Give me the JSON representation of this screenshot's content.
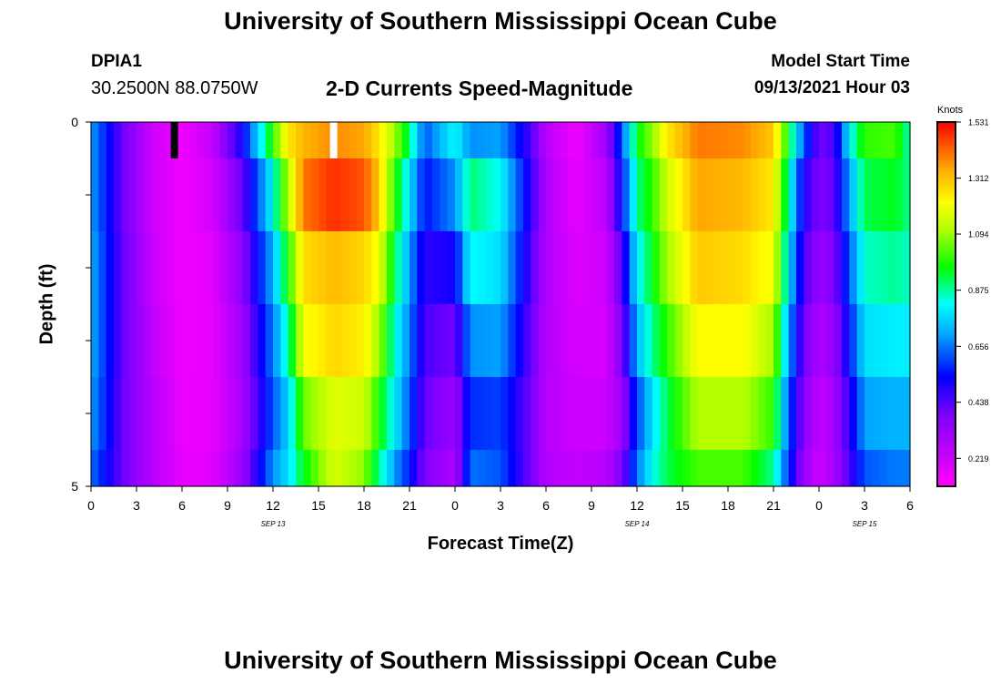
{
  "page_title": "University of Southern Mississippi Ocean Cube",
  "footer_title": "University of Southern Mississippi Ocean Cube",
  "station": {
    "id": "DPIA1",
    "coords": "30.2500N  88.0750W"
  },
  "model_start": {
    "label": "Model Start Time",
    "value": "09/13/2021 Hour 03"
  },
  "chart_data": {
    "type": "heatmap",
    "title": "2-D Currents Speed-Magnitude",
    "xlabel": "Forecast Time(Z)",
    "ylabel": "Depth (ft)",
    "x_tick_labels": [
      "0",
      "3",
      "6",
      "9",
      "12",
      "15",
      "18",
      "21",
      "0",
      "3",
      "6",
      "9",
      "12",
      "15",
      "18",
      "21",
      "0",
      "3",
      "6"
    ],
    "x_range_hours": [
      0,
      54
    ],
    "date_labels": [
      {
        "text": "SEP 13",
        "hour": 12
      },
      {
        "text": "SEP 14",
        "hour": 36
      },
      {
        "text": "SEP 15",
        "hour": 51
      }
    ],
    "y_tick_labels": [
      "0",
      "5"
    ],
    "y_range": [
      0,
      5
    ],
    "depth_rows": [
      0,
      0.5,
      1.5,
      2.5,
      3.5,
      4.5
    ],
    "colorbar": {
      "unit_label": "Knots",
      "min": 0.11,
      "max": 1.531,
      "tick_labels": [
        "1.531",
        "1.312",
        "1.094",
        "0.875",
        "0.656",
        "0.438",
        "0.219"
      ]
    },
    "keyframes": [
      {
        "hour": 0,
        "values": [
          0.7,
          0.7,
          0.72,
          0.72,
          0.7,
          0.65
        ]
      },
      {
        "hour": 2,
        "values": [
          0.42,
          0.42,
          0.43,
          0.43,
          0.42,
          0.42
        ]
      },
      {
        "hour": 4,
        "values": [
          0.22,
          0.22,
          0.23,
          0.25,
          0.27,
          0.27
        ]
      },
      {
        "hour": 6,
        "values": [
          0.14,
          0.14,
          0.14,
          0.14,
          0.15,
          0.16
        ]
      },
      {
        "hour": 8,
        "values": [
          0.24,
          0.2,
          0.17,
          0.16,
          0.16,
          0.17
        ]
      },
      {
        "hour": 10,
        "values": [
          0.52,
          0.42,
          0.36,
          0.32,
          0.3,
          0.33
        ]
      },
      {
        "hour": 12,
        "values": [
          1.0,
          0.82,
          0.72,
          0.66,
          0.62,
          0.68
        ]
      },
      {
        "hour": 13,
        "values": [
          1.25,
          1.12,
          0.98,
          0.86,
          0.76,
          0.78
        ]
      },
      {
        "hour": 14,
        "values": [
          1.33,
          1.4,
          1.27,
          1.2,
          1.05,
          0.95
        ]
      },
      {
        "hour": 16,
        "values": [
          1.38,
          1.48,
          1.32,
          1.28,
          1.18,
          1.17
        ]
      },
      {
        "hour": 18,
        "values": [
          1.35,
          1.44,
          1.28,
          1.24,
          1.15,
          1.08
        ]
      },
      {
        "hour": 19,
        "values": [
          1.25,
          1.3,
          1.2,
          1.1,
          0.98,
          0.88
        ]
      },
      {
        "hour": 20,
        "values": [
          1.1,
          1.0,
          0.92,
          0.84,
          0.8,
          0.7
        ]
      },
      {
        "hour": 21,
        "values": [
          0.9,
          0.78,
          0.7,
          0.66,
          0.62,
          0.56
        ]
      },
      {
        "hour": 22,
        "values": [
          0.62,
          0.55,
          0.48,
          0.45,
          0.42,
          0.38
        ]
      },
      {
        "hour": 24,
        "values": [
          0.82,
          0.68,
          0.52,
          0.4,
          0.32,
          0.28
        ]
      },
      {
        "hour": 25,
        "values": [
          0.68,
          0.9,
          0.82,
          0.68,
          0.58,
          0.65
        ]
      },
      {
        "hour": 27,
        "values": [
          0.7,
          0.82,
          0.78,
          0.7,
          0.6,
          0.62
        ]
      },
      {
        "hour": 29,
        "values": [
          0.45,
          0.48,
          0.45,
          0.42,
          0.4,
          0.4
        ]
      },
      {
        "hour": 30,
        "values": [
          0.26,
          0.28,
          0.28,
          0.27,
          0.26,
          0.27
        ]
      },
      {
        "hour": 32,
        "values": [
          0.14,
          0.16,
          0.18,
          0.2,
          0.22,
          0.24
        ]
      },
      {
        "hour": 34,
        "values": [
          0.32,
          0.26,
          0.22,
          0.2,
          0.22,
          0.26
        ]
      },
      {
        "hour": 35,
        "values": [
          0.62,
          0.55,
          0.45,
          0.38,
          0.32,
          0.38
        ]
      },
      {
        "hour": 36,
        "values": [
          0.95,
          0.88,
          0.8,
          0.72,
          0.6,
          0.65
        ]
      },
      {
        "hour": 37,
        "values": [
          1.08,
          1.0,
          0.95,
          0.88,
          0.78,
          0.82
        ]
      },
      {
        "hour": 38,
        "values": [
          1.25,
          1.15,
          1.1,
          1.0,
          0.92,
          0.92
        ]
      },
      {
        "hour": 40,
        "values": [
          1.4,
          1.35,
          1.3,
          1.22,
          1.12,
          1.02
        ]
      },
      {
        "hour": 43,
        "values": [
          1.38,
          1.32,
          1.27,
          1.22,
          1.12,
          1.02
        ]
      },
      {
        "hour": 45,
        "values": [
          1.3,
          1.25,
          1.2,
          1.1,
          1.0,
          0.88
        ]
      },
      {
        "hour": 46,
        "values": [
          0.95,
          0.85,
          0.78,
          0.7,
          0.62,
          0.58
        ]
      },
      {
        "hour": 47,
        "values": [
          0.62,
          0.5,
          0.45,
          0.4,
          0.36,
          0.33
        ]
      },
      {
        "hour": 48,
        "values": [
          0.4,
          0.38,
          0.33,
          0.28,
          0.24,
          0.22
        ]
      },
      {
        "hour": 49,
        "values": [
          0.45,
          0.42,
          0.38,
          0.34,
          0.3,
          0.3
        ]
      },
      {
        "hour": 50,
        "values": [
          0.8,
          0.7,
          0.62,
          0.55,
          0.48,
          0.45
        ]
      },
      {
        "hour": 51,
        "values": [
          1.0,
          0.92,
          0.85,
          0.78,
          0.7,
          0.62
        ]
      },
      {
        "hour": 53,
        "values": [
          1.02,
          0.95,
          0.88,
          0.8,
          0.72,
          0.66
        ]
      },
      {
        "hour": 54,
        "values": [
          0.85,
          0.88,
          0.85,
          0.8,
          0.72,
          0.66
        ]
      }
    ],
    "markers": [
      {
        "hour": 5.5,
        "color": "#000000"
      },
      {
        "hour": 16.0,
        "color": "#ffffff"
      }
    ]
  }
}
